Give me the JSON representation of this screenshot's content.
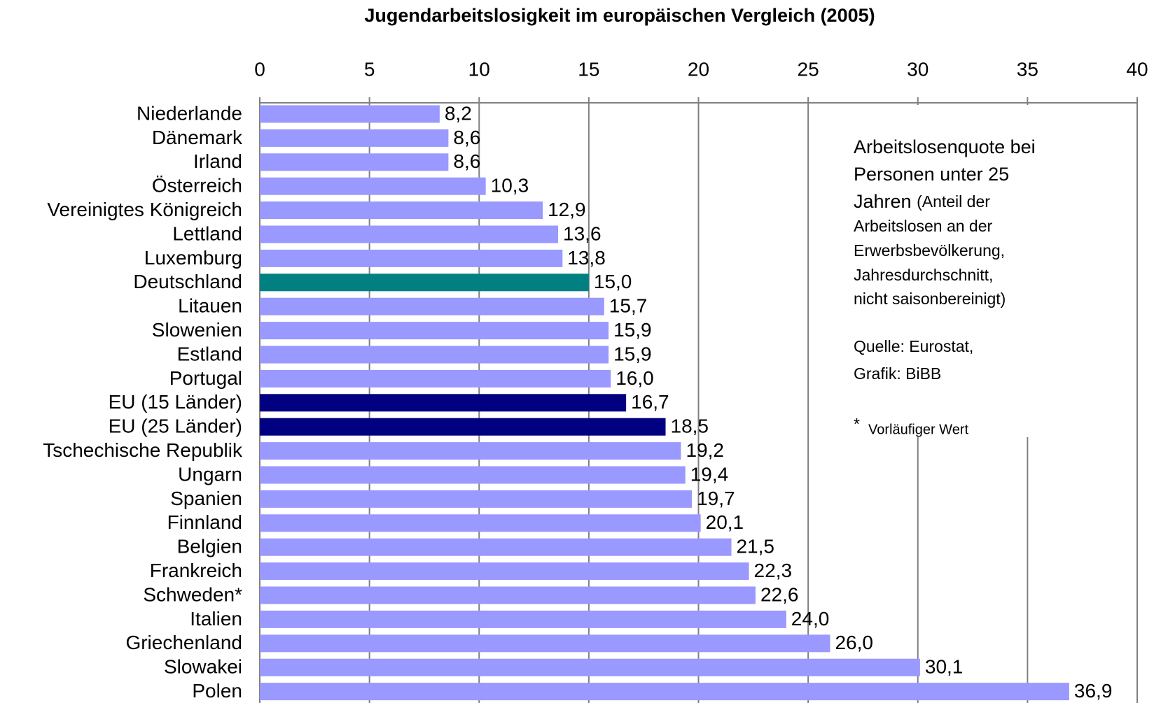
{
  "chart_data": {
    "type": "bar",
    "orientation": "horizontal",
    "title": "Jugendarbeitslosigkeit im europäischen Vergleich (2005)",
    "categories": [
      "Niederlande",
      "Dänemark",
      "Irland",
      "Österreich",
      "Vereinigtes Königreich",
      "Lettland",
      "Luxemburg",
      "Deutschland",
      "Litauen",
      "Slowenien",
      "Estland",
      "Portugal",
      "EU (15 Länder)",
      "EU (25 Länder)",
      "Tschechische Republik",
      "Ungarn",
      "Spanien",
      "Finnland",
      "Belgien",
      "Frankreich",
      "Schweden*",
      "Italien",
      "Griechenland",
      "Slowakei",
      "Polen"
    ],
    "values": [
      8.2,
      8.6,
      8.6,
      10.3,
      12.9,
      13.6,
      13.8,
      15.0,
      15.7,
      15.9,
      15.9,
      16.0,
      16.7,
      18.5,
      19.2,
      19.4,
      19.7,
      20.1,
      21.5,
      22.3,
      22.6,
      24.0,
      26.0,
      30.1,
      36.9
    ],
    "value_labels": [
      "8,2",
      "8,6",
      "8,6",
      "10,3",
      "12,9",
      "13,6",
      "13,8",
      "15,0",
      "15,7",
      "15,9",
      "15,9",
      "16,0",
      "16,7",
      "18,5",
      "19,2",
      "19,4",
      "19,7",
      "20,1",
      "21,5",
      "22,3",
      "22,6",
      "24,0",
      "26,0",
      "30,1",
      "36,9"
    ],
    "colors": [
      "#9999ff",
      "#9999ff",
      "#9999ff",
      "#9999ff",
      "#9999ff",
      "#9999ff",
      "#9999ff",
      "#008080",
      "#9999ff",
      "#9999ff",
      "#9999ff",
      "#9999ff",
      "#000080",
      "#000080",
      "#9999ff",
      "#9999ff",
      "#9999ff",
      "#9999ff",
      "#9999ff",
      "#9999ff",
      "#9999ff",
      "#9999ff",
      "#9999ff",
      "#9999ff",
      "#9999ff"
    ],
    "xlim": [
      0,
      40
    ],
    "xticks": [
      0,
      5,
      10,
      15,
      20,
      25,
      30,
      35,
      40
    ],
    "grid": true,
    "annotation": {
      "line1": "Arbeitslosenquote bei",
      "line2": "Personen unter 25",
      "line3": "Jahren",
      "line3_small": "(Anteil der",
      "line4": "Arbeitslosen an der",
      "line5": "Erwerbsbevölkerung,",
      "line6": "Jahresdurchschnitt,",
      "line7": "nicht saisonbereinigt)",
      "source1": "Quelle: Eurostat,",
      "source2": "Grafik: BiBB",
      "footnote_mark": "*",
      "footnote": "Vorläufiger Wert"
    }
  }
}
